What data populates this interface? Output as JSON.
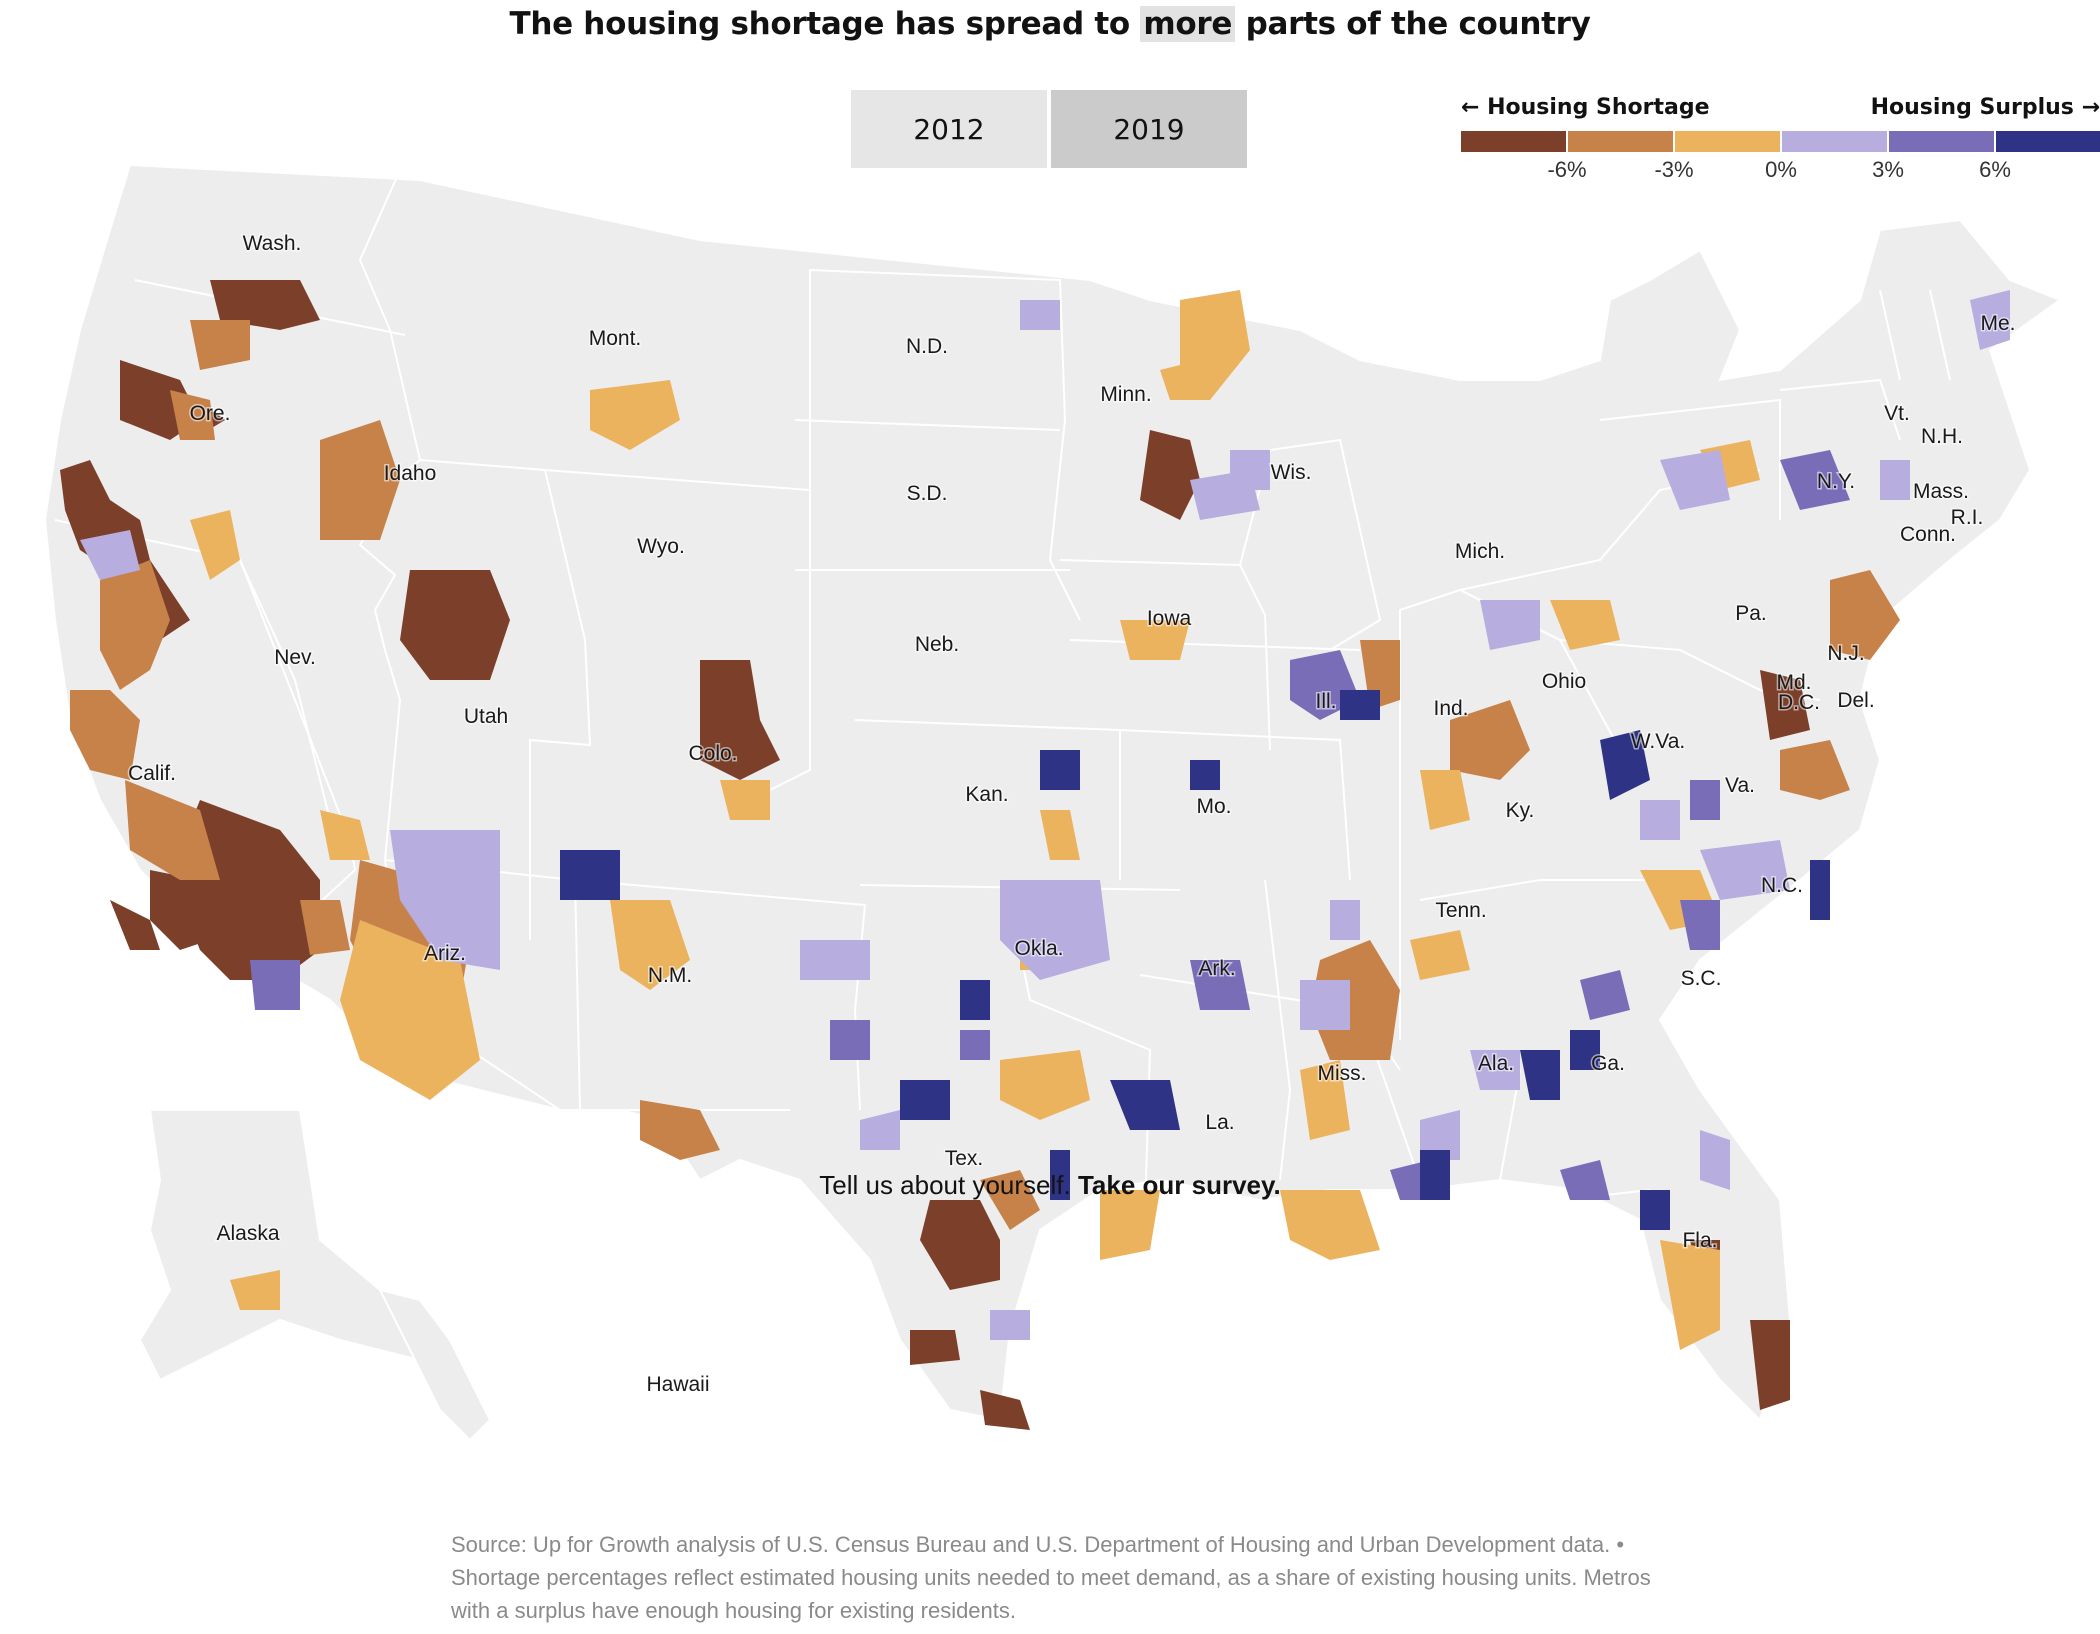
{
  "title": {
    "before": "The housing shortage has spread to ",
    "highlight": "more",
    "after": " parts of the country"
  },
  "toggle": {
    "option_a": "2012",
    "option_b": "2019",
    "selected": "2019"
  },
  "legend": {
    "left_label": "← Housing Shortage",
    "right_label": "Housing Surplus →",
    "colors": [
      "#7b3f2a",
      "#c7824a",
      "#ecb35f",
      "#b7addf",
      "#7a6db8",
      "#2e3386"
    ],
    "ticks": [
      "-6%",
      "-3%",
      "0%",
      "3%",
      "6%"
    ]
  },
  "map_colors": {
    "land": "#ededed",
    "border": "#ffffff"
  },
  "state_labels": [
    "Wash.",
    "Ore.",
    "Calif.",
    "Nev.",
    "Idaho",
    "Mont.",
    "Wyo.",
    "Utah",
    "Ariz.",
    "Colo.",
    "N.M.",
    "N.D.",
    "S.D.",
    "Neb.",
    "Kan.",
    "Okla.",
    "Tex.",
    "Minn.",
    "Iowa",
    "Mo.",
    "Ark.",
    "La.",
    "Wis.",
    "Ill.",
    "Mich.",
    "Ind.",
    "Ohio",
    "Ky.",
    "Tenn.",
    "Miss.",
    "Ala.",
    "Ga.",
    "Fla.",
    "S.C.",
    "N.C.",
    "Va.",
    "W.Va.",
    "Pa.",
    "N.Y.",
    "Vt.",
    "N.H.",
    "Me.",
    "Mass.",
    "R.I.",
    "Conn.",
    "N.J.",
    "Del.",
    "Md.",
    "D.C.",
    "Alaska",
    "Hawaii"
  ],
  "survey": {
    "text": "Tell us about yourself. ",
    "link": "Take our survey."
  },
  "source": "Source: Up for Growth analysis of U.S. Census Bureau and U.S. Department of Housing and Urban Development data.  •  Shortage percentages reflect estimated housing units needed to meet demand, as a share of existing housing units. Metros with a surplus have enough housing for existing residents."
}
